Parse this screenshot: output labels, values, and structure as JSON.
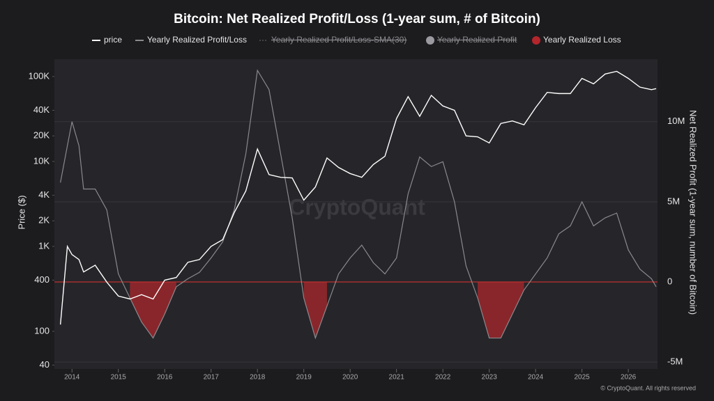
{
  "chart_data": {
    "type": "line",
    "title": "Bitcoin: Net Realized Profit/Loss (1-year sum, # of Bitcoin)",
    "ylabel": "Price ($)",
    "y2label": "Net Realized Profit (1-year sum, number of Bitcoin)",
    "watermark": "CryptoQuant",
    "footer": "© CryptoQuant. All rights reserved",
    "ylog": true,
    "x": [
      2013.75,
      2013.9,
      2014,
      2014.15,
      2014.25,
      2014.5,
      2014.75,
      2015,
      2015.25,
      2015.5,
      2015.75,
      2016,
      2016.25,
      2016.5,
      2016.75,
      2017,
      2017.25,
      2017.5,
      2017.75,
      2018,
      2018.25,
      2018.5,
      2018.75,
      2019,
      2019.25,
      2019.5,
      2019.75,
      2020,
      2020.25,
      2020.5,
      2020.75,
      2021,
      2021.25,
      2021.5,
      2021.75,
      2022,
      2022.25,
      2022.5,
      2022.75,
      2023,
      2023.25,
      2023.5,
      2023.75,
      2024,
      2024.25,
      2024.5,
      2024.75,
      2025,
      2025.25,
      2025.5,
      2025.75,
      2026,
      2026.25,
      2026.5,
      2026.6
    ],
    "xlim": [
      2013.62,
      2026.63
    ],
    "xticks": [
      2014,
      2015,
      2016,
      2017,
      2018,
      2019,
      2020,
      2021,
      2022,
      2023,
      2024,
      2025,
      2026
    ],
    "ylim": [
      36,
      160000
    ],
    "yticks": [
      40,
      100,
      400,
      {
        "value": 1000,
        "label": "1K"
      },
      {
        "value": 2000,
        "label": "2K"
      },
      {
        "value": 4000,
        "label": "4K"
      },
      {
        "value": 10000,
        "label": "10K"
      },
      {
        "value": 20000,
        "label": "20K"
      },
      {
        "value": 40000,
        "label": "40K"
      },
      {
        "value": 100000,
        "label": "100K"
      }
    ],
    "y2lim": [
      -5430000,
      13900000
    ],
    "y2ticks": [
      {
        "value": 10000000,
        "label": "10M"
      },
      {
        "value": 5000000,
        "label": "5M"
      },
      0,
      {
        "value": -5000000,
        "label": "-5M"
      }
    ],
    "series": [
      {
        "name": "price",
        "color": "#ffffff",
        "values": [
          120,
          1000,
          800,
          700,
          500,
          600,
          380,
          260,
          240,
          270,
          240,
          400,
          430,
          650,
          700,
          1000,
          1200,
          2500,
          4500,
          14000,
          7000,
          6500,
          6400,
          3500,
          5000,
          11000,
          8500,
          7200,
          6500,
          9200,
          11500,
          32000,
          58000,
          34000,
          60000,
          45000,
          40000,
          20000,
          19500,
          16500,
          28000,
          30000,
          27000,
          43000,
          65000,
          63000,
          63000,
          95000,
          82000,
          107000,
          115000,
          95000,
          75000,
          70000,
          72000
        ]
      },
      {
        "name": "Yearly Realized Profit/Loss",
        "color": "#8a8a8e",
        "axis": "y2",
        "values": [
          6200000,
          8500000,
          10000000,
          8500000,
          5800000,
          5800000,
          4500000,
          500000,
          -1000000,
          -2500000,
          -3500000,
          -2000000,
          -300000,
          200000,
          600000,
          1500000,
          2500000,
          4500000,
          8000000,
          13200000,
          12000000,
          8000000,
          4000000,
          -1000000,
          -3500000,
          -1500000,
          500000,
          1500000,
          2300000,
          1200000,
          500000,
          1500000,
          5500000,
          7800000,
          7200000,
          7500000,
          5000000,
          1000000,
          -1000000,
          -3500000,
          -3500000,
          -2000000,
          -500000,
          500000,
          1500000,
          3000000,
          3500000,
          5000000,
          3500000,
          4000000,
          4300000,
          2000000,
          800000,
          200000,
          -300000
        ]
      },
      {
        "name": "Yearly Realized Profit/Loss-SMA(30)",
        "color": "#6a6a6e",
        "hidden": true
      },
      {
        "name": "Yearly Realized Profit",
        "color": "#9a9aa0",
        "hidden": true
      },
      {
        "name": "Yearly Realized Loss",
        "color": "#b3262c",
        "axis": "y2",
        "area": true,
        "values": [
          null,
          null,
          null,
          null,
          null,
          null,
          null,
          null,
          -1000000,
          -2500000,
          -3500000,
          -2000000,
          -300000,
          null,
          null,
          null,
          null,
          null,
          null,
          null,
          null,
          null,
          null,
          -1000000,
          -3500000,
          -1500000,
          null,
          null,
          null,
          null,
          null,
          null,
          null,
          null,
          null,
          null,
          null,
          null,
          -1000000,
          -3500000,
          -3500000,
          -2000000,
          -500000,
          null,
          null,
          null,
          null,
          null,
          null,
          null,
          null,
          null,
          null,
          null,
          -300000
        ]
      }
    ]
  }
}
